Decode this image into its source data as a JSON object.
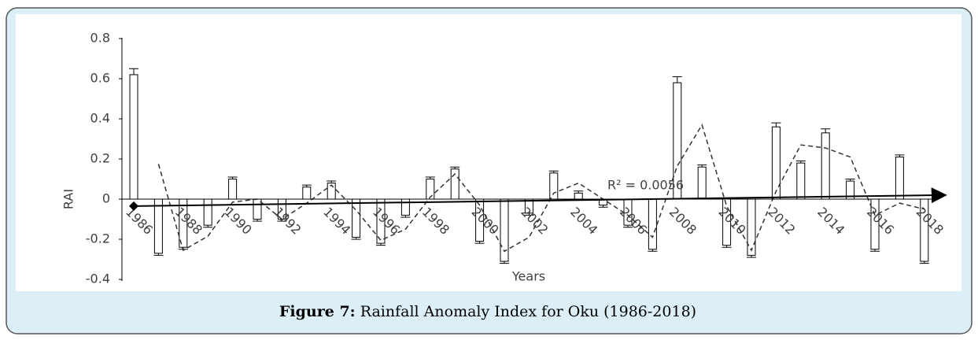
{
  "chart_data": {
    "type": "bar",
    "ylabel": "RAI",
    "xlabel": "Years",
    "caption_bold": "Figure 7:",
    "caption": "Rainfall Anomaly Index for Oku (1986-2018)",
    "categories": [
      "1986",
      null,
      "1988",
      null,
      "1990",
      null,
      "1992",
      null,
      "1994",
      null,
      "1996",
      null,
      "1998",
      null,
      "2000",
      null,
      "2002",
      null,
      "2004",
      null,
      "2006",
      null,
      "2008",
      null,
      "2010",
      null,
      "2012",
      null,
      "2014",
      null,
      "2016",
      null,
      "2018"
    ],
    "values": [
      0.62,
      -0.27,
      -0.24,
      -0.13,
      0.1,
      -0.1,
      -0.1,
      0.06,
      0.08,
      -0.19,
      -0.22,
      -0.08,
      0.1,
      0.15,
      -0.21,
      -0.31,
      -0.07,
      0.13,
      0.03,
      -0.03,
      -0.13,
      -0.25,
      0.58,
      0.16,
      -0.23,
      -0.28,
      0.36,
      0.18,
      0.33,
      0.09,
      -0.25,
      0.21,
      -0.31
    ],
    "errors": [
      0.03,
      0.01,
      0.01,
      0.01,
      0.01,
      0.01,
      0.01,
      0.01,
      0.01,
      0.01,
      0.01,
      0.01,
      0.01,
      0.01,
      0.01,
      0.01,
      0.01,
      0.01,
      0.01,
      0.01,
      0.01,
      0.01,
      0.03,
      0.01,
      0.01,
      0.01,
      0.02,
      0.01,
      0.02,
      0.01,
      0.01,
      0.01,
      0.01
    ],
    "moving_average": [
      null,
      0.175,
      -0.255,
      -0.185,
      -0.015,
      0.0,
      -0.1,
      -0.02,
      0.07,
      -0.055,
      -0.205,
      -0.15,
      0.01,
      0.125,
      -0.03,
      -0.26,
      -0.19,
      0.03,
      0.08,
      0.0,
      -0.08,
      -0.19,
      0.165,
      0.37,
      -0.035,
      -0.255,
      0.04,
      0.27,
      0.255,
      0.21,
      -0.08,
      -0.02,
      -0.05
    ],
    "trend": [
      -0.035,
      0.02
    ],
    "annotation": "R² = 0.0056",
    "color": "#ffffff",
    "ylim": [
      -0.4,
      0.8
    ],
    "yticks": [
      -0.4,
      -0.2,
      0,
      0.2,
      0.4,
      0.6,
      0.8
    ]
  }
}
